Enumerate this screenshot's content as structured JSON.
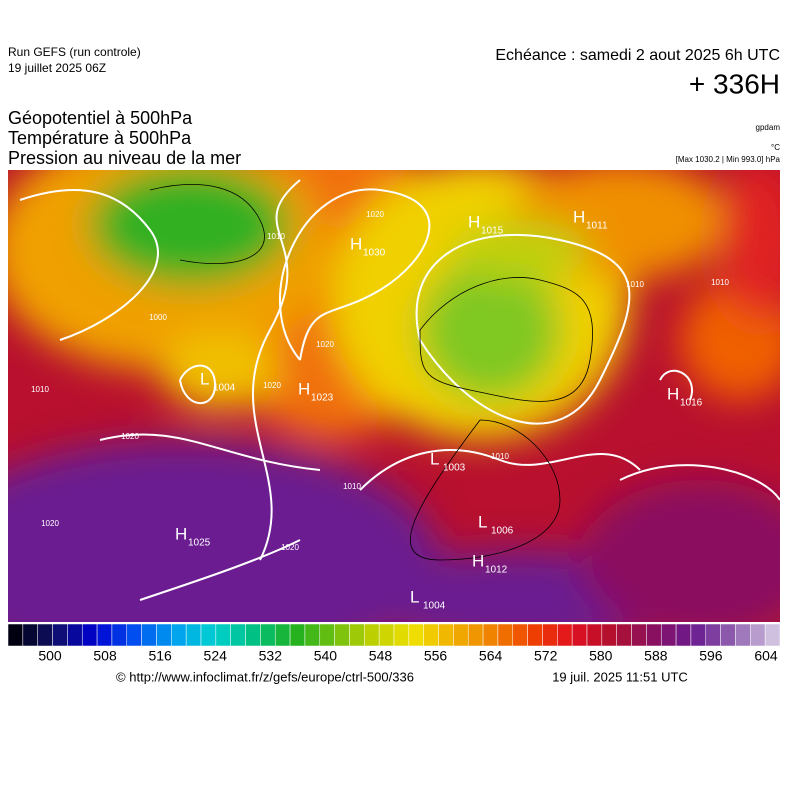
{
  "header": {
    "run": "Run GEFS (run controle)",
    "run_date": "19 juillet 2025 06Z",
    "valid": "Echéance : samedi 2 aout 2025 6h UTC",
    "lead": "+ 336H"
  },
  "titles": [
    "Géopotentiel à 500hPa",
    "Température à 500hPa",
    "Pression au niveau de la mer"
  ],
  "units": {
    "geopotential": "gpdam",
    "temperature": "°C",
    "pressure": "[Max 1030.2 | Min 993.0] hPa"
  },
  "map": {
    "centers": [
      {
        "letter": "H",
        "pressure": "1030"
      },
      {
        "letter": "L",
        "pressure": "1004"
      },
      {
        "letter": "H",
        "pressure": "1023"
      },
      {
        "letter": "H",
        "pressure": "1025"
      },
      {
        "letter": "L",
        "pressure": "1006"
      },
      {
        "letter": "H",
        "pressure": "1012"
      },
      {
        "letter": "L",
        "pressure": "1004"
      },
      {
        "letter": "L",
        "pressure": "1003"
      },
      {
        "letter": "H",
        "pressure": "1016"
      },
      {
        "letter": "H",
        "pressure": "1011"
      },
      {
        "letter": "H",
        "pressure": "1015"
      }
    ],
    "isobar_labels": [
      "1020",
      "1010",
      "1000",
      "1010",
      "1020",
      "1020",
      "1020",
      "1020",
      "1020",
      "1010",
      "1010",
      "1010",
      "1010"
    ]
  },
  "colorbar": {
    "ticks": [
      "500",
      "508",
      "516",
      "524",
      "532",
      "540",
      "548",
      "556",
      "564",
      "572",
      "580",
      "588",
      "596",
      "604"
    ]
  },
  "footer": {
    "url": "© http://www.infoclimat.fr/z/gefs/europe/ctrl-500/336",
    "time": "19 juil. 2025 11:51 UTC"
  }
}
